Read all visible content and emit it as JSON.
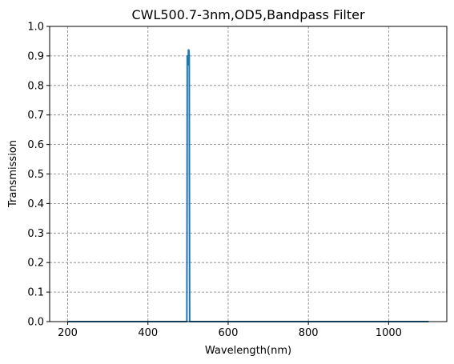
{
  "chart_data": {
    "type": "line",
    "title": "CWL500.7-3nm,OD5,Bandpass Filter",
    "xlabel": "Wavelength(nm)",
    "ylabel": "Transmission",
    "xlim": [
      155,
      1145
    ],
    "ylim": [
      0,
      1.0
    ],
    "xticks": [
      200,
      400,
      600,
      800,
      1000
    ],
    "xtick_labels": [
      "200",
      "400",
      "600",
      "800",
      "1000"
    ],
    "yticks": [
      0,
      0.1,
      0.2,
      0.3,
      0.4,
      0.5,
      0.6,
      0.7,
      0.8,
      0.9,
      1.0
    ],
    "ytick_labels": [
      "0.0",
      "0.1",
      "0.2",
      "0.3",
      "0.4",
      "0.5",
      "0.6",
      "0.7",
      "0.8",
      "0.9",
      "1.0"
    ],
    "grid": true,
    "series": [
      {
        "color": "#1f77b4",
        "x": [
          200,
          497,
          497.6,
          498,
          499,
          500,
          500.7,
          501,
          502,
          503,
          503.4,
          504,
          1100
        ],
        "y": [
          0,
          0,
          0.45,
          0.9,
          0.9,
          0.87,
          0.89,
          0.92,
          0.92,
          0.9,
          0.45,
          0,
          0
        ]
      }
    ]
  }
}
